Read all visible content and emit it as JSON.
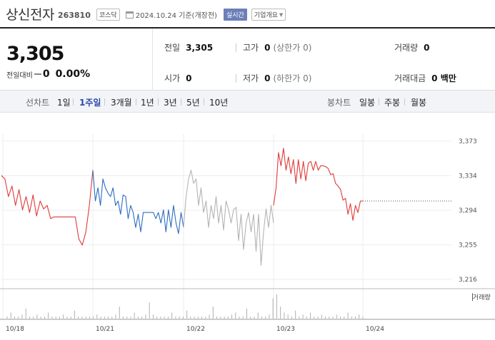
{
  "header": {
    "stock_name": "상신전자",
    "stock_code": "263810",
    "market": "코스닥",
    "calendar_icon": "calendar-icon",
    "date_text": "2024.10.24 기준(개장전)",
    "realtime_label": "실시간",
    "company_info_label": "기업개요"
  },
  "quote": {
    "price": "3,305",
    "change_label": "전일대비",
    "change_value": "0",
    "change_percent": "0.00%",
    "prev_close_label": "전일",
    "prev_close": "3,305",
    "high_label": "고가",
    "high": "0",
    "upper_limit": "(상한가 0)",
    "volume_label": "거래량",
    "volume": "0",
    "open_label": "시가",
    "open": "0",
    "low_label": "저가",
    "low": "0",
    "lower_limit": "(하한가 0)",
    "amount_label": "거래대금",
    "amount": "0 백만"
  },
  "tabs": {
    "line_chart_label": "선차트",
    "line_periods": [
      "1일",
      "1주일",
      "3개월",
      "1년",
      "3년",
      "5년",
      "10년"
    ],
    "active_period": "1주일",
    "candle_chart_label": "봉차트",
    "candle_periods": [
      "일봉",
      "주봉",
      "월봉"
    ]
  },
  "colors": {
    "up": "#e03a3a",
    "down": "#2d6cc0",
    "flat": "#b4b4b4",
    "accent": "#2b4aa8",
    "badge": "#6b7fb8"
  },
  "chart_data": {
    "type": "line",
    "x_ticks": [
      "10/18",
      "10/21",
      "10/22",
      "10/23",
      "10/24"
    ],
    "y_ticks": [
      "3,373",
      "3,334",
      "3,294",
      "3,255",
      "3,216"
    ],
    "ylim": [
      3216,
      3373
    ],
    "reference_price": 3305,
    "volume_label": "거래량",
    "series": [
      {
        "color": "up",
        "values": [
          3334,
          3330,
          3310,
          3322,
          3300,
          3318,
          3295,
          3310,
          3292,
          3312,
          3288,
          3305,
          3296,
          3300,
          3285,
          3287,
          3287,
          3287,
          3287,
          3287,
          3287,
          3287,
          3262,
          3255,
          3270,
          3300,
          3340
        ]
      },
      {
        "color": "down",
        "values": [
          3340,
          3305,
          3320,
          3300,
          3330,
          3320,
          3314,
          3310,
          3320,
          3300,
          3305,
          3290,
          3312,
          3310,
          3285,
          3300,
          3292,
          3275,
          3290,
          3270,
          3292,
          3292,
          3292,
          3292,
          3292,
          3285,
          3292,
          3280,
          3295,
          3270,
          3295,
          3275,
          3300,
          3280,
          3268,
          3292,
          3275
        ]
      },
      {
        "color": "flat",
        "values": [
          3275,
          3310,
          3330,
          3340,
          3325,
          3330,
          3300,
          3320,
          3292,
          3305,
          3275,
          3300,
          3285,
          3310,
          3280,
          3300,
          3272,
          3305,
          3295,
          3280,
          3295,
          3298,
          3260,
          3290,
          3250,
          3280,
          3292,
          3270,
          3290,
          3248,
          3290,
          3232,
          3270,
          3296,
          3275,
          3300,
          3280
        ]
      },
      {
        "color": "up",
        "values": [
          3300,
          3320,
          3360,
          3345,
          3365,
          3340,
          3355,
          3336,
          3352,
          3325,
          3352,
          3330,
          3350,
          3328,
          3348,
          3350,
          3340,
          3350,
          3340,
          3345,
          3345,
          3344,
          3342,
          3335,
          3336,
          3325,
          3322,
          3318,
          3306,
          3308,
          3290,
          3302,
          3283,
          3300,
          3292,
          3305,
          3305
        ]
      }
    ],
    "volume": [
      1,
      3,
      1,
      1,
      2,
      5,
      1,
      1,
      2,
      1,
      1,
      3,
      1,
      1,
      1,
      2,
      1,
      1,
      4,
      1,
      1,
      1,
      1,
      1,
      2,
      1,
      1,
      1,
      1,
      2,
      6,
      1,
      1,
      1,
      3,
      1,
      1,
      2,
      8,
      2,
      1,
      1,
      1,
      1,
      3,
      1,
      1,
      1,
      4,
      1,
      1,
      1,
      1,
      1,
      2,
      6,
      1,
      1,
      1,
      1,
      2,
      3,
      1,
      1,
      5,
      1,
      1,
      3,
      1,
      1,
      2,
      10,
      12,
      6,
      3,
      2,
      1,
      4,
      1,
      2,
      1,
      3,
      1,
      1,
      2,
      1,
      1,
      1,
      2,
      1,
      1,
      3,
      1,
      1,
      2,
      1
    ]
  }
}
